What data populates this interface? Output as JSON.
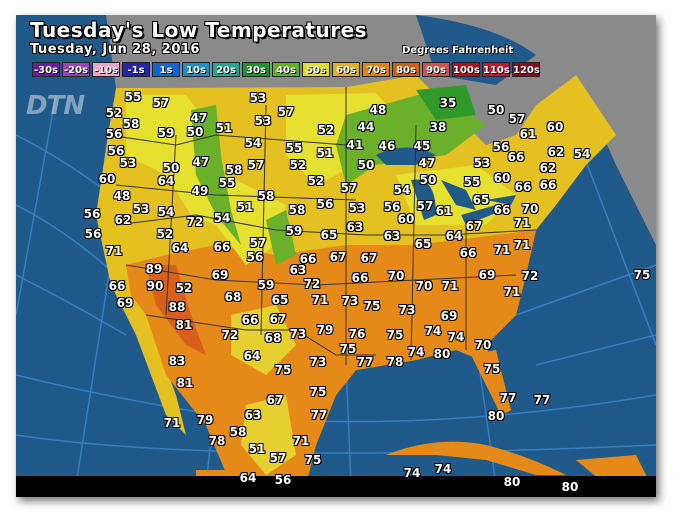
{
  "header": {
    "title": "Tuesday's Low Temperatures",
    "date": "Tuesday, Jun 28, 2016",
    "units": "Degrees Fahrenheit",
    "logo": "DTN"
  },
  "legend": [
    {
      "label": "-30s",
      "color": "#6a1fa0"
    },
    {
      "label": "-20s",
      "color": "#9a44b8"
    },
    {
      "label": "-10s",
      "color": "#f0a0d0"
    },
    {
      "label": "-1s",
      "color": "#2424a8"
    },
    {
      "label": "1s",
      "color": "#1464d0"
    },
    {
      "label": "10s",
      "color": "#1890c0"
    },
    {
      "label": "20s",
      "color": "#20a890"
    },
    {
      "label": "30s",
      "color": "#209028"
    },
    {
      "label": "40s",
      "color": "#60b020"
    },
    {
      "label": "50s",
      "color": "#e0e020"
    },
    {
      "label": "60s",
      "color": "#e0b020"
    },
    {
      "label": "70s",
      "color": "#e08010"
    },
    {
      "label": "80s",
      "color": "#d06010"
    },
    {
      "label": "90s",
      "color": "#d05050"
    },
    {
      "label": "100s",
      "color": "#b01020"
    },
    {
      "label": "110s",
      "color": "#c01830"
    },
    {
      "label": "120s",
      "color": "#801020"
    }
  ],
  "colors": {
    "ocean": "#1f5a8a",
    "no_data_land": "#8a8a8a",
    "grid": "#3d86d0"
  },
  "temperatures": [
    55,
    57,
    53,
    57,
    52,
    58,
    47,
    51,
    53,
    59,
    50,
    52,
    56,
    54,
    55,
    51,
    56,
    53,
    50,
    47,
    58,
    57,
    52,
    60,
    64,
    55,
    52,
    49,
    48,
    58,
    56,
    53,
    54,
    51,
    58,
    56,
    62,
    72,
    54,
    59,
    65,
    56,
    52,
    64,
    66,
    57,
    56,
    66,
    67,
    71,
    63,
    89,
    90,
    52,
    66,
    69,
    69,
    59,
    72,
    35,
    48,
    50,
    57,
    44,
    38,
    61,
    60,
    41,
    46,
    45,
    56,
    53,
    66,
    62,
    54,
    50,
    47,
    62,
    50,
    60,
    57,
    54,
    55,
    66,
    66,
    65,
    56,
    57,
    53,
    61,
    66,
    70,
    60,
    63,
    67,
    71,
    63,
    64,
    65,
    71,
    66,
    71,
    67,
    66,
    70,
    69,
    72,
    70,
    71,
    71,
    75,
    68,
    65,
    71,
    73,
    75,
    88,
    81,
    66,
    67,
    79,
    76,
    72,
    68,
    73,
    75,
    64,
    77,
    73,
    83,
    75,
    81,
    75,
    67,
    77,
    63,
    79,
    71,
    58,
    78,
    71,
    51,
    57,
    75,
    64,
    56,
    73,
    69,
    74,
    74,
    75,
    74,
    80,
    70,
    78,
    75,
    77,
    77,
    80,
    74,
    74,
    80,
    80
  ]
}
